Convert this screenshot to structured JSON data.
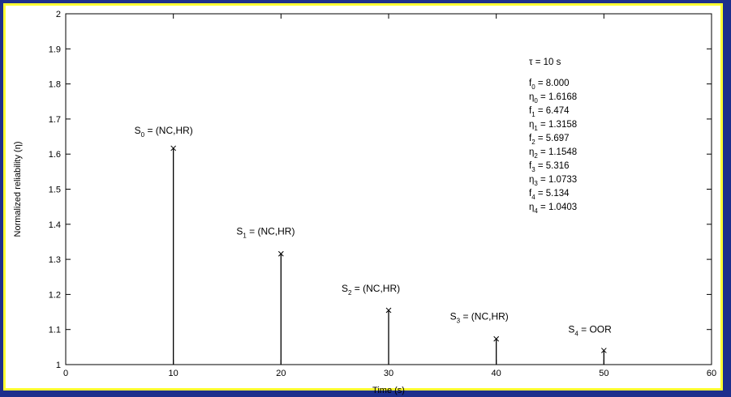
{
  "colors": {
    "frame": "#1e2f8c",
    "border": "#ffff33",
    "plot_bg": "#ffffff",
    "ink": "#000000"
  },
  "chart_data": {
    "type": "stem",
    "xlabel": "Time (s)",
    "ylabel": "Normalized reliability (η)",
    "xlim": [
      0,
      60
    ],
    "ylim": [
      1,
      2
    ],
    "xticks": [
      0,
      10,
      20,
      30,
      40,
      50,
      60
    ],
    "yticks": [
      1,
      1.1,
      1.2,
      1.3,
      1.4,
      1.5,
      1.6,
      1.7,
      1.8,
      1.9,
      2
    ],
    "grid": false,
    "marker": "x",
    "points": [
      {
        "x": 10,
        "y": 1.6168,
        "label_prefix": "S",
        "label_sub": "0",
        "label_suffix": " = (NC,HR)"
      },
      {
        "x": 20,
        "y": 1.3158,
        "label_prefix": "S",
        "label_sub": "1",
        "label_suffix": " = (NC,HR)"
      },
      {
        "x": 30,
        "y": 1.1548,
        "label_prefix": "S",
        "label_sub": "2",
        "label_suffix": " = (NC,HR)"
      },
      {
        "x": 40,
        "y": 1.0733,
        "label_prefix": "S",
        "label_sub": "3",
        "label_suffix": " = (NC,HR)"
      },
      {
        "x": 50,
        "y": 1.0403,
        "label_prefix": "S",
        "label_sub": "4",
        "label_suffix": " = OOR"
      }
    ],
    "tau_text": "τ = 10 s",
    "params": [
      {
        "sym": "f",
        "sub": "0",
        "value": " = 8.000"
      },
      {
        "sym": "η",
        "sub": "0",
        "value": " = 1.6168"
      },
      {
        "sym": "f",
        "sub": "1",
        "value": " = 6.474"
      },
      {
        "sym": "η",
        "sub": "1",
        "value": " = 1.3158"
      },
      {
        "sym": "f",
        "sub": "2",
        "value": " = 5.697"
      },
      {
        "sym": "η",
        "sub": "2",
        "value": " = 1.1548"
      },
      {
        "sym": "f",
        "sub": "3",
        "value": " = 5.316"
      },
      {
        "sym": "η",
        "sub": "3",
        "value": " = 1.0733"
      },
      {
        "sym": "f",
        "sub": "4",
        "value": " = 5.134"
      },
      {
        "sym": "η",
        "sub": "4",
        "value": " = 1.0403"
      }
    ]
  }
}
